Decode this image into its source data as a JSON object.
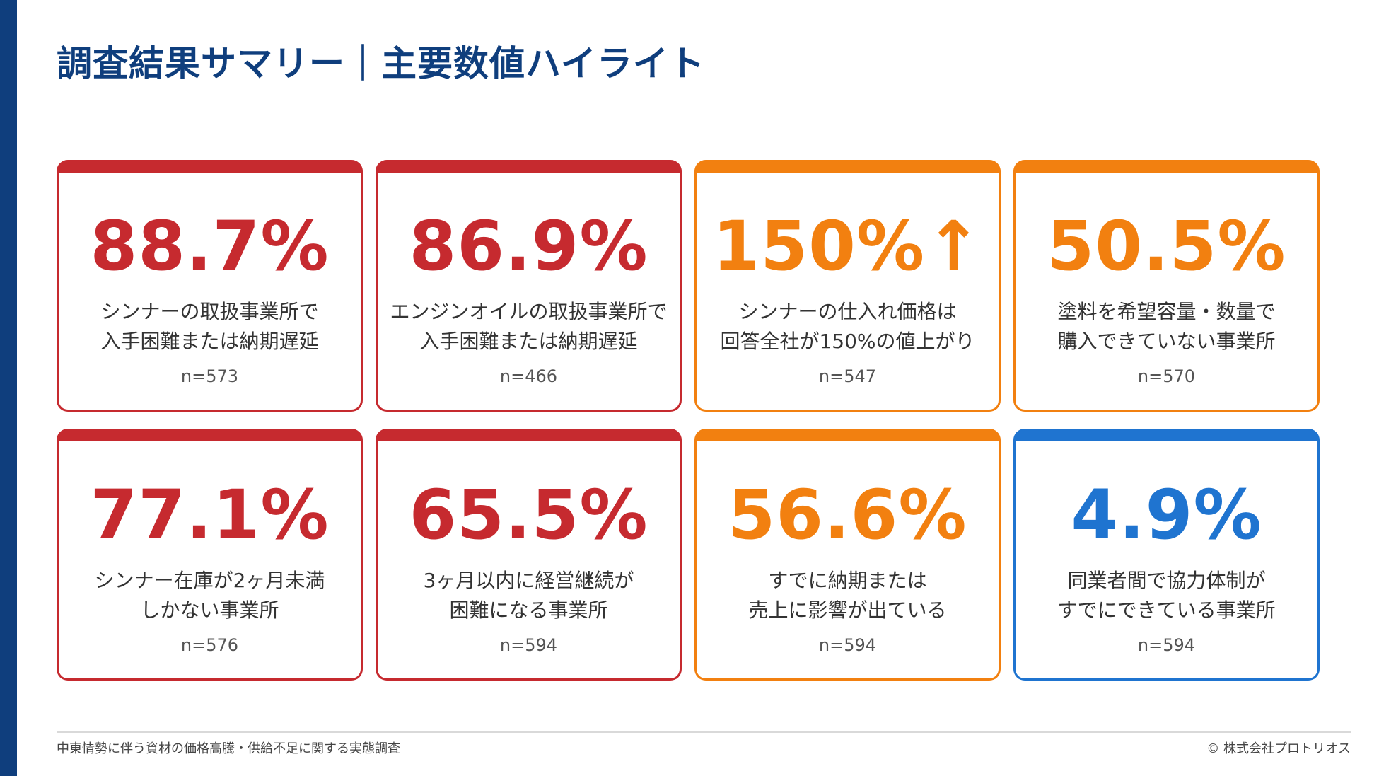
{
  "title": "調査結果サマリー｜主要数値ハイライト",
  "colors": {
    "sidebar": "#0f3e7d",
    "red": "#c62a2f",
    "orange": "#f28010",
    "blue": "#1f74d0"
  },
  "cards": [
    {
      "value": "88.7%",
      "line1": "シンナーの取扱事業所で",
      "line2": "入手困難または納期遅延",
      "n": "n=573",
      "color": "red"
    },
    {
      "value": "86.9%",
      "line1": "エンジンオイルの取扱事業所で",
      "line2": "入手困難または納期遅延",
      "n": "n=466",
      "color": "red"
    },
    {
      "value": "150%↑",
      "line1": "シンナーの仕入れ価格は",
      "line2": "回答全社が150%の値上がり",
      "n": "n=547",
      "color": "orange"
    },
    {
      "value": "50.5%",
      "line1": "塗料を希望容量・数量で",
      "line2": "購入できていない事業所",
      "n": "n=570",
      "color": "orange"
    },
    {
      "value": "77.1%",
      "line1": "シンナー在庫が2ヶ月未満",
      "line2": "しかない事業所",
      "n": "n=576",
      "color": "red"
    },
    {
      "value": "65.5%",
      "line1": "3ヶ月以内に経営継続が",
      "line2": "困難になる事業所",
      "n": "n=594",
      "color": "red"
    },
    {
      "value": "56.6%",
      "line1": "すでに納期または",
      "line2": "売上に影響が出ている",
      "n": "n=594",
      "color": "orange"
    },
    {
      "value": "4.9%",
      "line1": "同業者間で協力体制が",
      "line2": "すでにできている事業所",
      "n": "n=594",
      "color": "blue"
    }
  ],
  "footer": {
    "left": "中東情勢に伴う資材の価格高騰・供給不足に関する実態調査",
    "right": "© 株式会社プロトリオス"
  }
}
